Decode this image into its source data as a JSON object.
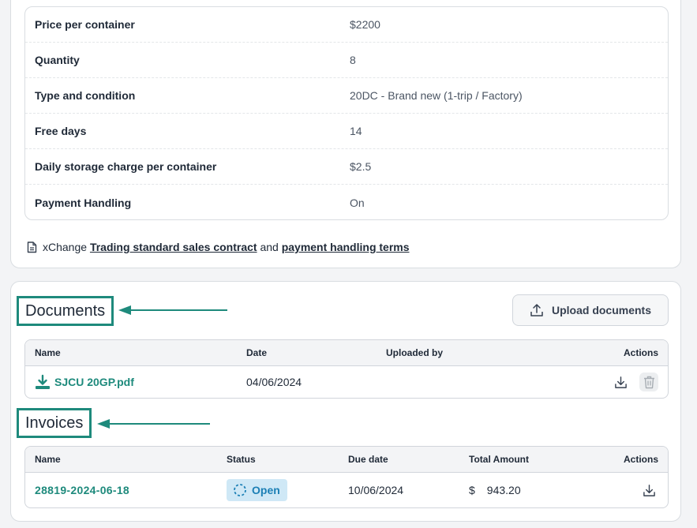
{
  "details": [
    {
      "label": "Price per container",
      "value": "$2200"
    },
    {
      "label": "Quantity",
      "value": "8"
    },
    {
      "label": "Type and condition",
      "value": "20DC - Brand new (1-trip / Factory)"
    },
    {
      "label": "Free days",
      "value": "14"
    },
    {
      "label": "Daily storage charge per container",
      "value": "$2.5"
    },
    {
      "label": "Payment Handling",
      "value": "On"
    }
  ],
  "contract": {
    "prefix": "xChange",
    "link1": "Trading standard sales contract",
    "joiner": "and",
    "link2": "payment handling terms"
  },
  "documents": {
    "title": "Documents",
    "upload_label": "Upload documents",
    "headers": {
      "name": "Name",
      "date": "Date",
      "uploaded_by": "Uploaded by",
      "actions": "Actions"
    },
    "rows": [
      {
        "name": "SJCU 20GP.pdf",
        "date": "04/06/2024",
        "uploaded_by": ""
      }
    ]
  },
  "invoices": {
    "title": "Invoices",
    "headers": {
      "name": "Name",
      "status": "Status",
      "due_date": "Due date",
      "total": "Total Amount",
      "actions": "Actions"
    },
    "rows": [
      {
        "name": "28819-2024-06-18",
        "status": "Open",
        "due_date": "10/06/2024",
        "currency": "$",
        "amount": "943.20"
      }
    ]
  },
  "colors": {
    "accent": "#1e8a7c",
    "status_open_bg": "#cfe8f6",
    "status_open_text": "#1b7fb5"
  },
  "icons": [
    "document-icon",
    "upload-icon",
    "file-download-icon",
    "download-icon",
    "trash-icon",
    "status-open-icon",
    "arrow-left-icon"
  ]
}
